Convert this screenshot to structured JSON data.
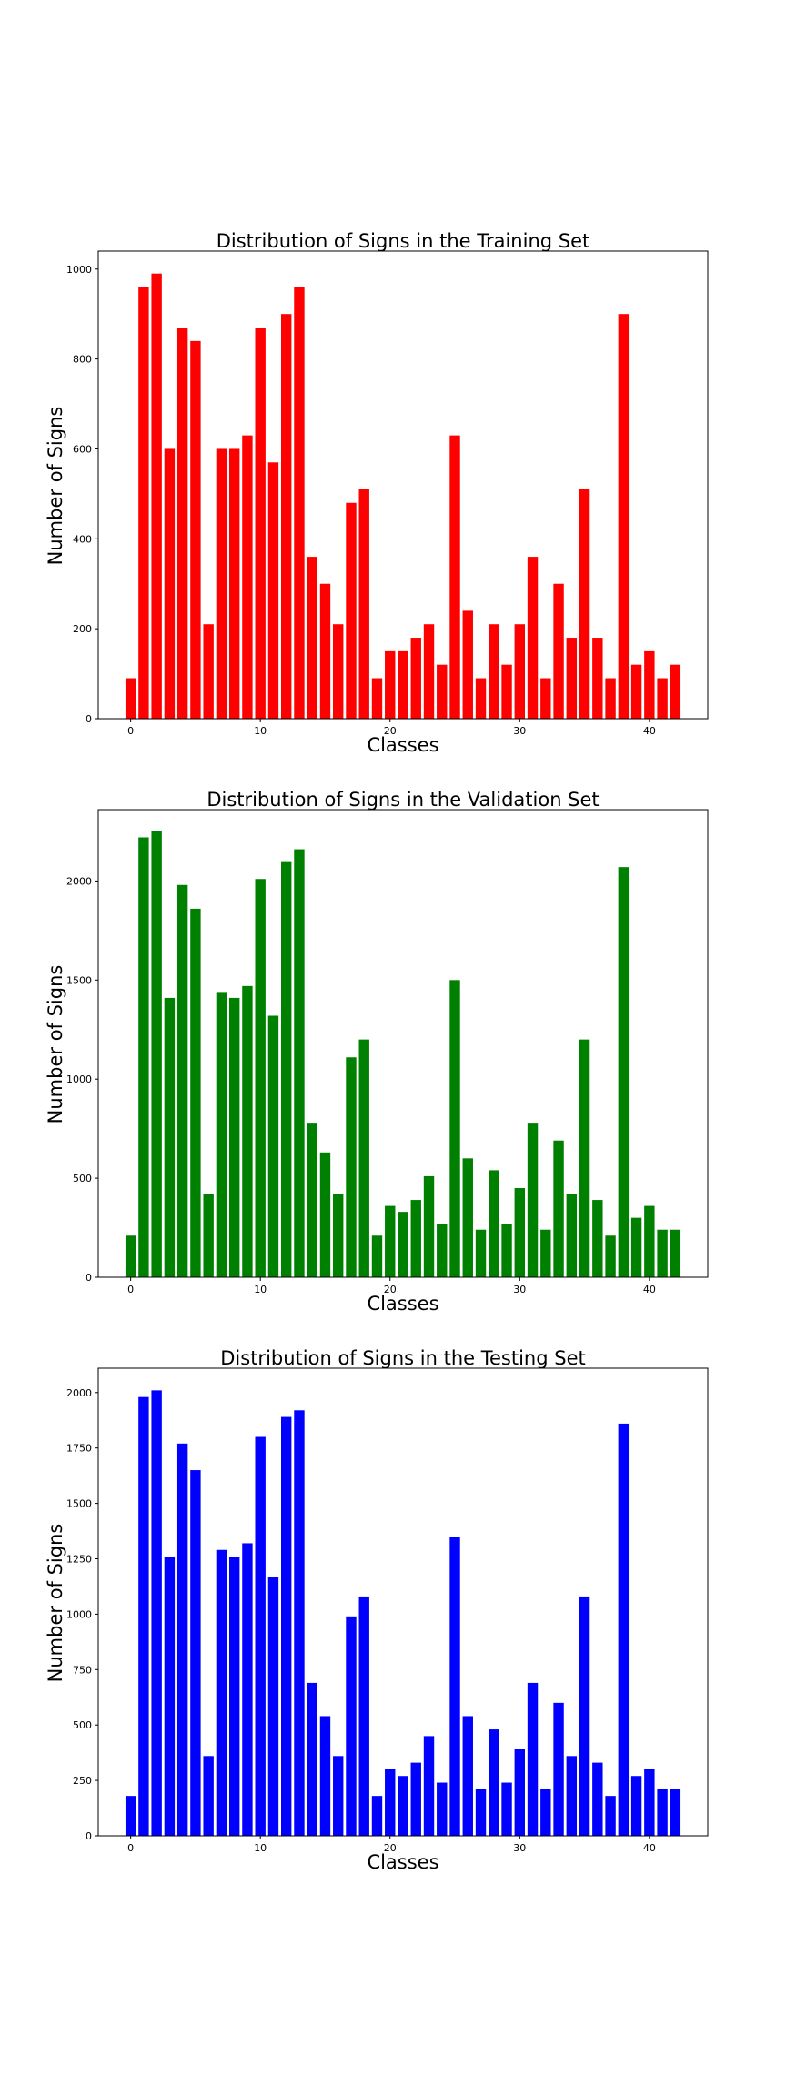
{
  "chart_data": [
    {
      "type": "bar",
      "title": "Distribution of Signs in the Training Set",
      "xlabel": "Classes",
      "ylabel": "Number of Signs",
      "color": "#ff0000",
      "xlim": [
        -2.5,
        44.5
      ],
      "ylim": [
        0,
        1040
      ],
      "xticks": [
        0,
        10,
        20,
        30,
        40
      ],
      "yticks": [
        0,
        200,
        400,
        600,
        800,
        1000
      ],
      "x": [
        0,
        1,
        2,
        3,
        4,
        5,
        6,
        7,
        8,
        9,
        10,
        11,
        12,
        13,
        14,
        15,
        16,
        17,
        18,
        19,
        20,
        21,
        22,
        23,
        24,
        25,
        26,
        27,
        28,
        29,
        30,
        31,
        32,
        33,
        34,
        35,
        36,
        37,
        38,
        39,
        40,
        41,
        42
      ],
      "values": [
        90,
        960,
        990,
        600,
        870,
        840,
        210,
        600,
        600,
        630,
        870,
        570,
        900,
        960,
        360,
        300,
        210,
        480,
        510,
        90,
        150,
        150,
        180,
        210,
        120,
        630,
        240,
        90,
        210,
        120,
        210,
        360,
        90,
        300,
        180,
        510,
        180,
        90,
        900,
        120,
        150,
        90,
        120
      ]
    },
    {
      "type": "bar",
      "title": "Distribution of Signs in the Validation Set",
      "xlabel": "Classes",
      "ylabel": "Number of Signs",
      "color": "#008000",
      "xlim": [
        -2.5,
        44.5
      ],
      "ylim": [
        0,
        2360
      ],
      "xticks": [
        0,
        10,
        20,
        30,
        40
      ],
      "yticks": [
        0,
        500,
        1000,
        1500,
        2000
      ],
      "x": [
        0,
        1,
        2,
        3,
        4,
        5,
        6,
        7,
        8,
        9,
        10,
        11,
        12,
        13,
        14,
        15,
        16,
        17,
        18,
        19,
        20,
        21,
        22,
        23,
        24,
        25,
        26,
        27,
        28,
        29,
        30,
        31,
        32,
        33,
        34,
        35,
        36,
        37,
        38,
        39,
        40,
        41,
        42
      ],
      "values": [
        210,
        2220,
        2250,
        1410,
        1980,
        1860,
        420,
        1440,
        1410,
        1470,
        2010,
        1320,
        2100,
        2160,
        780,
        630,
        420,
        1110,
        1200,
        210,
        360,
        330,
        390,
        510,
        270,
        1500,
        600,
        240,
        540,
        270,
        450,
        780,
        240,
        690,
        420,
        1200,
        390,
        210,
        2070,
        300,
        360,
        240,
        240
      ]
    },
    {
      "type": "bar",
      "title": "Distribution of Signs in the Testing Set",
      "xlabel": "Classes",
      "ylabel": "Number of Signs",
      "color": "#0000ff",
      "xlim": [
        -2.5,
        44.5
      ],
      "ylim": [
        0,
        2110
      ],
      "xticks": [
        0,
        10,
        20,
        30,
        40
      ],
      "yticks": [
        0,
        250,
        500,
        750,
        1000,
        1250,
        1500,
        1750,
        2000
      ],
      "x": [
        0,
        1,
        2,
        3,
        4,
        5,
        6,
        7,
        8,
        9,
        10,
        11,
        12,
        13,
        14,
        15,
        16,
        17,
        18,
        19,
        20,
        21,
        22,
        23,
        24,
        25,
        26,
        27,
        28,
        29,
        30,
        31,
        32,
        33,
        34,
        35,
        36,
        37,
        38,
        39,
        40,
        41,
        42
      ],
      "values": [
        180,
        1980,
        2010,
        1260,
        1770,
        1650,
        360,
        1290,
        1260,
        1320,
        1800,
        1170,
        1890,
        1920,
        690,
        540,
        360,
        990,
        1080,
        180,
        300,
        270,
        330,
        450,
        240,
        1350,
        540,
        210,
        480,
        240,
        390,
        690,
        210,
        600,
        360,
        1080,
        330,
        180,
        1860,
        270,
        300,
        210,
        210
      ]
    }
  ]
}
